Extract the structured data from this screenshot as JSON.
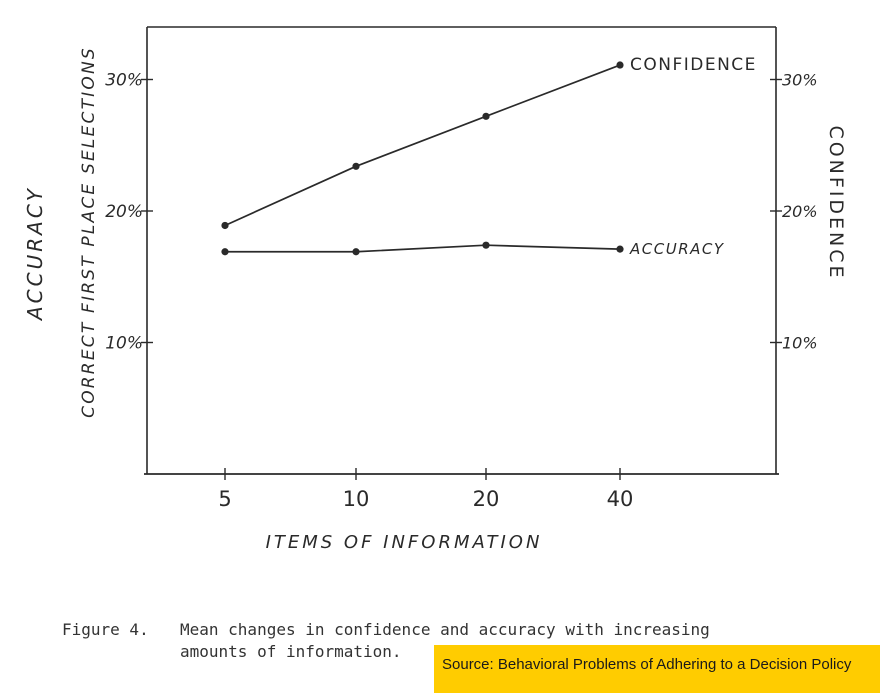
{
  "chart_data": {
    "type": "line",
    "x_categories": [
      "5",
      "10",
      "20",
      "40"
    ],
    "xlabel": "ITEMS OF INFORMATION",
    "ylabel_left_outer": "ACCURACY",
    "ylabel_left_inner": "CORRECT FIRST PLACE SELECTIONS",
    "ylabel_right": "CONFIDENCE",
    "left_ticks": [
      "10%",
      "20%",
      "30%"
    ],
    "right_ticks": [
      "10%",
      "20%",
      "30%"
    ],
    "ylim": [
      0,
      34
    ],
    "series": [
      {
        "name": "CONFIDENCE",
        "values": [
          18.9,
          23.4,
          27.2,
          31.1
        ]
      },
      {
        "name": "ACCURACY",
        "values": [
          16.9,
          16.9,
          17.4,
          17.1
        ]
      }
    ],
    "grid": false,
    "legend": "inline labels at line ends"
  },
  "caption": {
    "number": "Figure 4.",
    "text_line1": "Mean changes in confidence and accuracy with increasing",
    "text_line2": "amounts of information."
  },
  "source_badge": "Source: Behavioral Problems of Adhering to a Decision Policy",
  "colors": {
    "ink": "#2a2a2a",
    "badge": "#ffcc00"
  }
}
